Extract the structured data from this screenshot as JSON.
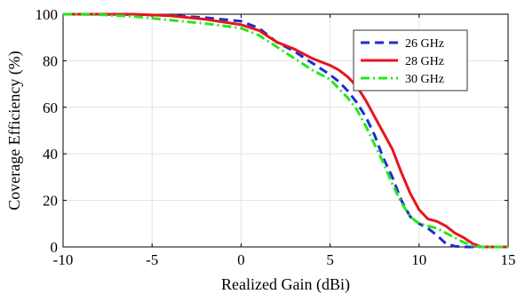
{
  "chart_data": {
    "type": "line",
    "title": "",
    "xlabel": "Realized Gain (dBi)",
    "ylabel": "Coverage Efficiency (%)",
    "xlim": [
      -10,
      15
    ],
    "ylim": [
      0,
      100
    ],
    "xticks": [
      -10,
      -5,
      0,
      5,
      10,
      15
    ],
    "yticks": [
      0,
      20,
      40,
      60,
      80,
      100
    ],
    "xtick_labels": [
      "-10",
      "-5",
      "0",
      "5",
      "10",
      "15"
    ],
    "ytick_labels": [
      "0",
      "20",
      "40",
      "60",
      "80",
      "100"
    ],
    "grid": true,
    "legend_position": "top-right",
    "series": [
      {
        "name": "26 GHz",
        "color": "#1f2ccf",
        "style": "dashed",
        "x": [
          -10,
          -8,
          -6,
          -4,
          -2,
          0,
          1,
          2,
          3,
          4,
          5,
          5.5,
          6,
          6.5,
          7,
          7.5,
          8,
          8.5,
          9,
          9.5,
          10,
          10.5,
          11,
          11.5,
          12,
          12.5,
          13,
          13.5,
          14,
          15
        ],
        "y": [
          100,
          100,
          99.8,
          99.5,
          98.5,
          97,
          94,
          88,
          84,
          79,
          74,
          71,
          67,
          62,
          56,
          48,
          38,
          30,
          20,
          13,
          10,
          8,
          5,
          1.5,
          0.3,
          0,
          0,
          0,
          0,
          0
        ]
      },
      {
        "name": "28 GHz",
        "color": "#e8141e",
        "style": "solid",
        "x": [
          -10,
          -8,
          -6,
          -4,
          -2,
          0,
          1,
          2,
          3,
          4,
          5,
          5.5,
          6,
          6.5,
          7,
          7.5,
          8,
          8.5,
          9,
          9.5,
          10,
          10.5,
          11,
          11.5,
          12,
          12.5,
          13,
          13.5,
          14,
          15
        ],
        "y": [
          100,
          100,
          100,
          99.3,
          97.8,
          95.5,
          93,
          88,
          85,
          81,
          78,
          76,
          73,
          69,
          63,
          56,
          49,
          42,
          32,
          23,
          16,
          12,
          11,
          9,
          6,
          4,
          1.5,
          0,
          0,
          0
        ]
      },
      {
        "name": "30 GHz",
        "color": "#22e81e",
        "style": "dashdot",
        "x": [
          -10,
          -8,
          -6,
          -4,
          -2,
          0,
          1,
          2,
          3,
          4,
          5,
          5.5,
          6,
          6.5,
          7,
          7.5,
          8,
          8.5,
          9,
          9.5,
          10,
          10.5,
          11,
          11.5,
          12,
          12.5,
          13,
          13.5,
          14,
          15
        ],
        "y": [
          100,
          99.8,
          99,
          97.5,
          96,
          94,
          91,
          86,
          81,
          76,
          72,
          68,
          64,
          59,
          52,
          44,
          36,
          27,
          19,
          13,
          10,
          9,
          8,
          6,
          4,
          2,
          0.5,
          0,
          0,
          0
        ]
      }
    ]
  }
}
